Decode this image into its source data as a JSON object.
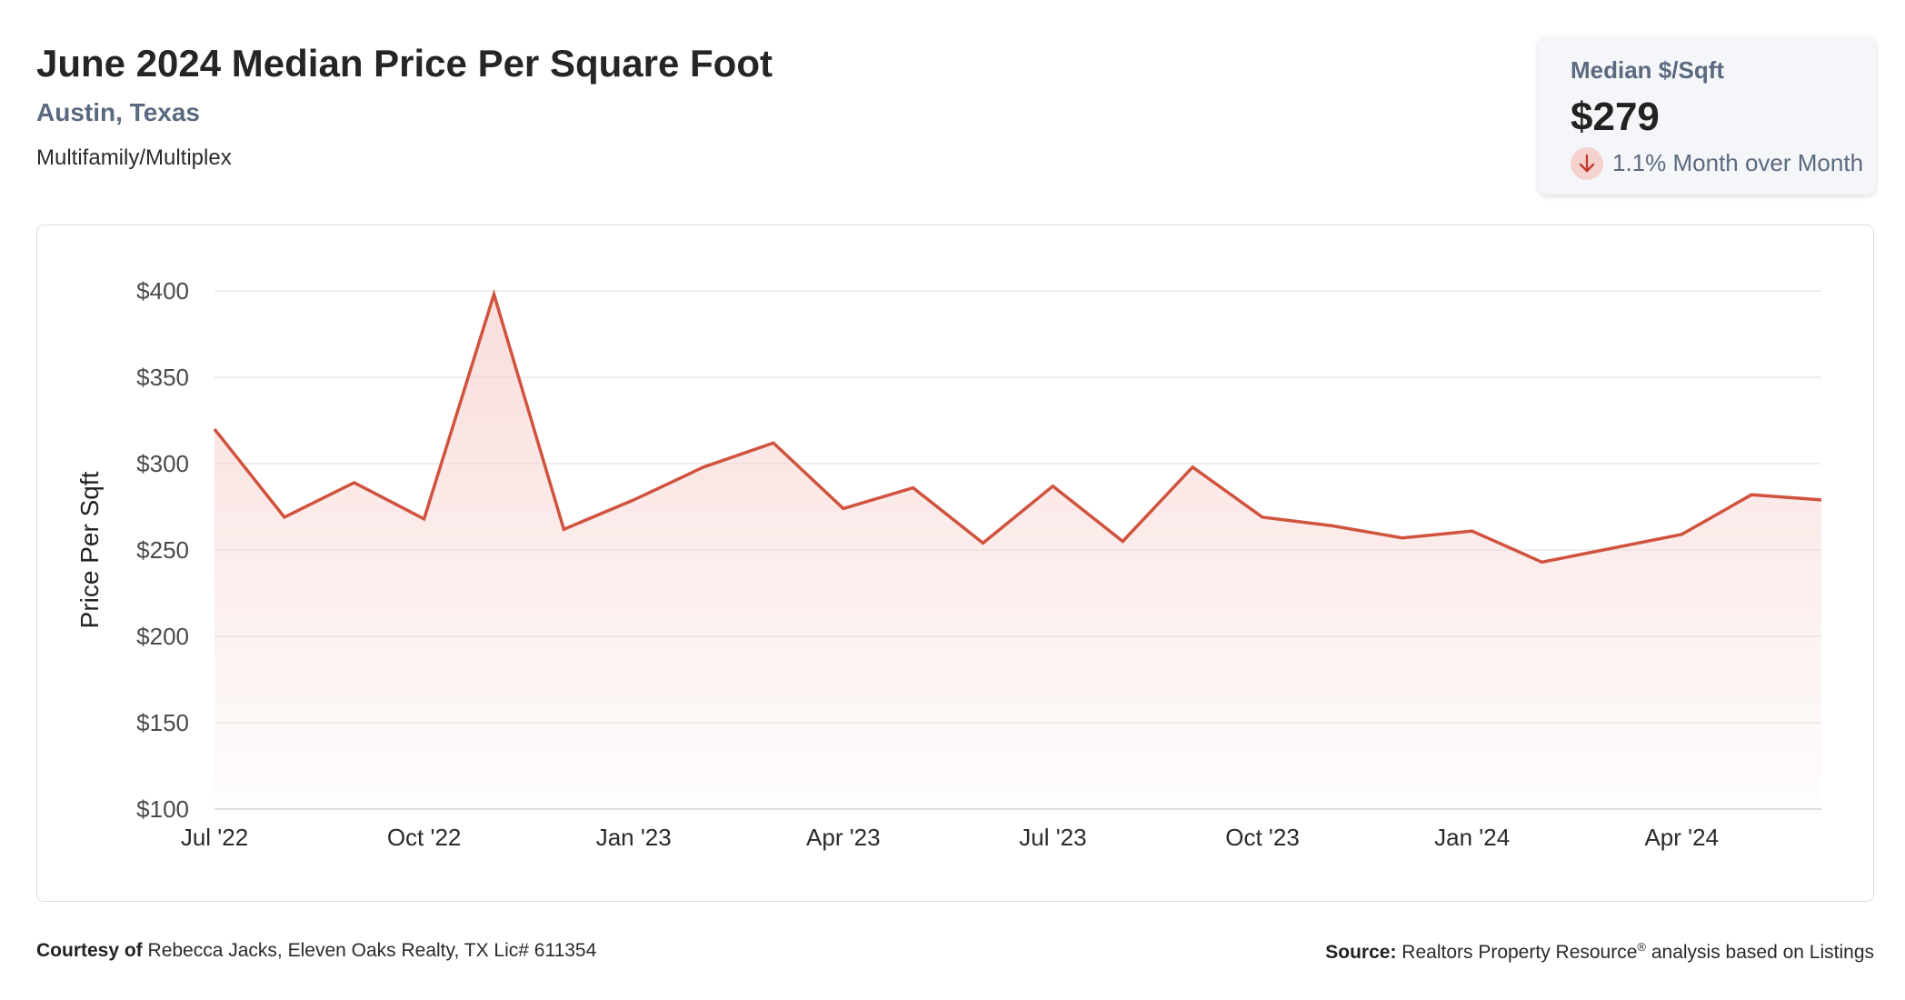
{
  "header": {
    "title": "June 2024 Median Price Per Square Foot",
    "location": "Austin, Texas",
    "property_type": "Multifamily/Multiplex"
  },
  "stat_card": {
    "label": "Median $/Sqft",
    "value": "$279",
    "change_text": "1.1% Month over Month",
    "change_direction": "down",
    "change_icon": "arrow-down-icon",
    "change_color": "#d0533e"
  },
  "footer": {
    "courtesy_label": "Courtesy of",
    "courtesy_text": "Rebecca Jacks, Eleven Oaks Realty, TX Lic# 611354",
    "source_label": "Source:",
    "source_name": "Realtors Property Resource",
    "source_mark": "®",
    "source_text": "analysis based on Listings"
  },
  "chart_data": {
    "type": "area",
    "title": "",
    "xlabel": "",
    "ylabel": "Price Per Sqft",
    "ylim": [
      100,
      400
    ],
    "yticks": [
      100,
      150,
      200,
      250,
      300,
      350,
      400
    ],
    "ytick_labels": [
      "$100",
      "$150",
      "$200",
      "$250",
      "$300",
      "$350",
      "$400"
    ],
    "xtick_labels": [
      "Jul '22",
      "Oct '22",
      "Jan '23",
      "Apr '23",
      "Jul '23",
      "Oct '23",
      "Jan '24",
      "Apr '24"
    ],
    "xtick_indices": [
      0,
      3,
      6,
      9,
      12,
      15,
      18,
      21
    ],
    "grid": true,
    "line_color": "#d0533e",
    "fill_color": "#f6d2cf",
    "series": [
      {
        "x": [
          "Jul 2022",
          "Aug 2022",
          "Sep 2022",
          "Oct 2022",
          "Nov 2022",
          "Dec 2022",
          "Jan 2023",
          "Feb 2023",
          "Mar 2023",
          "Apr 2023",
          "May 2023",
          "Jun 2023",
          "Jul 2023",
          "Aug 2023",
          "Sep 2023",
          "Oct 2023",
          "Nov 2023",
          "Dec 2023",
          "Jan 2024",
          "Feb 2024",
          "Mar 2024",
          "Apr 2024",
          "May 2024",
          "Jun 2024"
        ],
        "values": [
          320,
          269,
          289,
          268,
          398,
          262,
          279,
          298,
          312,
          274,
          286,
          254,
          287,
          255,
          298,
          269,
          264,
          257,
          261,
          243,
          251,
          259,
          282,
          279
        ]
      }
    ]
  }
}
